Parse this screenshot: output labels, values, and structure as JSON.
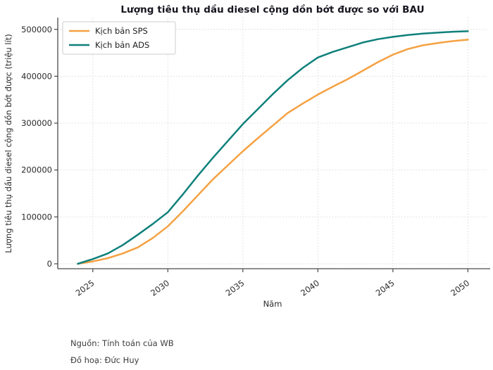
{
  "title": "Lượng tiêu thụ dầu diesel cộng dồn bớt được so với BAU",
  "footer": {
    "source": "Nguồn: Tính toán của WB",
    "credit": "Đồ hoạ: Đức Huy"
  },
  "colors": {
    "sps": "#F5A142",
    "ads": "#0F807B",
    "grid": "#d6d6d6",
    "spine": "#4a4a4a",
    "tick_text": "#2b2b2b",
    "legend_border": "#cccccc"
  },
  "chart_data": {
    "type": "line",
    "title": "Lượng tiêu thụ dầu diesel cộng dồn bớt được so với BAU",
    "xlabel": "Năm",
    "ylabel": "Lượng tiêu thụ dầu diesel cộng dồn bớt được (triệu lít)",
    "xlim": [
      2024,
      2050
    ],
    "ylim": [
      0,
      500000
    ],
    "xticks": [
      2025,
      2030,
      2035,
      2040,
      2045,
      2050
    ],
    "yticks": [
      0,
      100000,
      200000,
      300000,
      400000,
      500000
    ],
    "grid": true,
    "legend_position": "top-left",
    "x": [
      2024,
      2025,
      2026,
      2027,
      2028,
      2029,
      2030,
      2031,
      2032,
      2033,
      2034,
      2035,
      2036,
      2037,
      2038,
      2039,
      2040,
      2041,
      2042,
      2043,
      2044,
      2045,
      2046,
      2047,
      2048,
      2049,
      2050
    ],
    "series": [
      {
        "name": "Kịch bản SPS",
        "values": [
          0,
          5000,
          12000,
          22000,
          35000,
          55000,
          80000,
          112000,
          146000,
          180000,
          210000,
          240000,
          268000,
          295000,
          322000,
          342000,
          361000,
          378000,
          394000,
          412000,
          430000,
          446000,
          458000,
          466000,
          471000,
          475000,
          478000
        ]
      },
      {
        "name": "Kịch bản ADS",
        "values": [
          0,
          10000,
          22000,
          40000,
          62000,
          85000,
          110000,
          148000,
          188000,
          226000,
          262000,
          298000,
          330000,
          362000,
          392000,
          418000,
          440000,
          452000,
          462000,
          472000,
          479000,
          484000,
          488000,
          491000,
          493000,
          495000,
          496000
        ]
      }
    ]
  }
}
